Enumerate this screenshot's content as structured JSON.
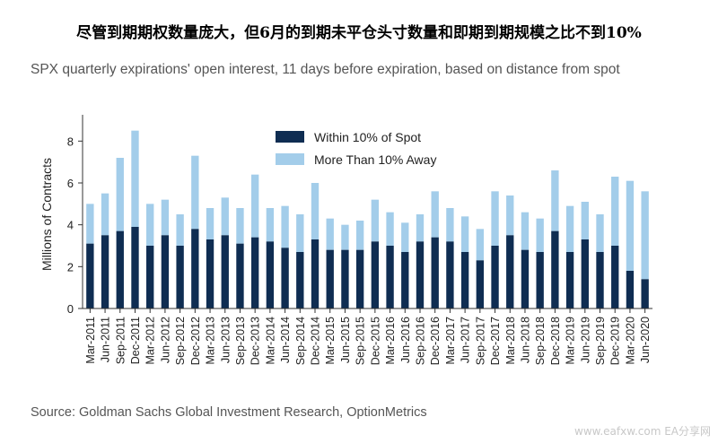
{
  "headline": "尽管到期期权数量庞大，但6月的到期未平仓头寸数量和即期到期规模之比不到10%",
  "source": "Source: Goldman Sachs Global Investment Research, OptionMetrics",
  "watermark": "www.eafxw.com  EA分享网",
  "colors": {
    "near": "#0f2d52",
    "away": "#a3cdea",
    "axis": "#333333"
  },
  "chart_data": {
    "type": "bar",
    "stacked": true,
    "title": "SPX quarterly expirations' open interest, 11 days before expiration, based on distance from spot",
    "ylabel": "Millions of Contracts",
    "ylim": [
      0,
      9
    ],
    "yticks": [
      0,
      2,
      4,
      6,
      8
    ],
    "grid": false,
    "legend_position": "top-center",
    "categories": [
      "Mar-2011",
      "Jun-2011",
      "Sep-2011",
      "Dec-2011",
      "Mar-2012",
      "Jun-2012",
      "Sep-2012",
      "Dec-2012",
      "Mar-2013",
      "Jun-2013",
      "Sep-2013",
      "Dec-2013",
      "Mar-2014",
      "Jun-2014",
      "Sep-2014",
      "Dec-2014",
      "Mar-2015",
      "Jun-2015",
      "Sep-2015",
      "Dec-2015",
      "Mar-2016",
      "Jun-2016",
      "Sep-2016",
      "Dec-2016",
      "Mar-2017",
      "Jun-2017",
      "Sep-2017",
      "Dec-2017",
      "Mar-2018",
      "Jun-2018",
      "Sep-2018",
      "Dec-2018",
      "Mar-2019",
      "Jun-2019",
      "Sep-2019",
      "Dec-2019",
      "Mar-2020",
      "Jun-2020"
    ],
    "series": [
      {
        "name": "Within 10% of Spot",
        "values": [
          3.1,
          3.5,
          3.7,
          3.9,
          3.0,
          3.5,
          3.0,
          3.8,
          3.3,
          3.5,
          3.1,
          3.4,
          3.2,
          2.9,
          2.7,
          3.3,
          2.8,
          2.8,
          2.8,
          3.2,
          3.0,
          2.7,
          3.2,
          3.4,
          3.2,
          2.7,
          2.3,
          3.0,
          3.5,
          2.8,
          2.7,
          3.7,
          2.7,
          3.3,
          2.7,
          3.0,
          1.8,
          1.4
        ]
      },
      {
        "name": "More Than 10% Away",
        "values": [
          1.9,
          2.0,
          3.5,
          4.6,
          2.0,
          1.7,
          1.5,
          3.5,
          1.5,
          1.8,
          1.7,
          3.0,
          1.6,
          2.0,
          1.8,
          2.7,
          1.5,
          1.2,
          1.4,
          2.0,
          1.6,
          1.4,
          1.3,
          2.2,
          1.6,
          1.7,
          1.5,
          2.6,
          1.9,
          1.8,
          1.6,
          2.9,
          2.2,
          1.8,
          1.8,
          3.3,
          4.3,
          4.2
        ]
      }
    ]
  }
}
